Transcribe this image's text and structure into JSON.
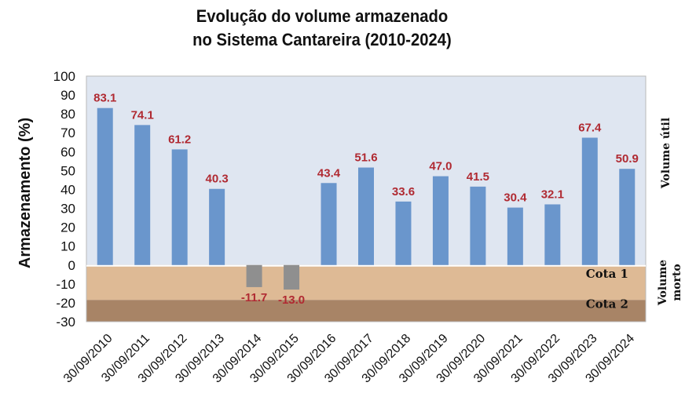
{
  "chart_data": {
    "type": "bar",
    "title_lines": [
      "Evolução do volume armazenado",
      "no Sistema Cantareira (2010-2024)"
    ],
    "ylabel": "Armazenamento (%)",
    "ylim": [
      -30,
      100
    ],
    "yticks": [
      100,
      90,
      80,
      70,
      60,
      50,
      40,
      30,
      20,
      10,
      0,
      -10,
      -20,
      -30
    ],
    "categories": [
      "30/09/2010",
      "30/09/2011",
      "30/09/2012",
      "30/09/2013",
      "30/09/2014",
      "30/09/2015",
      "30/09/2016",
      "30/09/2017",
      "30/09/2018",
      "30/09/2019",
      "30/09/2020",
      "30/09/2021",
      "30/09/2022",
      "30/09/2023",
      "30/09/2024"
    ],
    "values": [
      83.1,
      74.1,
      61.2,
      40.3,
      -11.7,
      -13.0,
      43.4,
      51.6,
      33.6,
      47.0,
      41.5,
      30.4,
      32.1,
      67.4,
      50.9
    ],
    "data_labels": [
      "83.1",
      "74.1",
      "61.2",
      "40.3",
      "-11.7",
      "-13.0",
      "43.4",
      "51.6",
      "33.6",
      "47.0",
      "41.5",
      "30.4",
      "32.1",
      "67.4",
      "50.9"
    ],
    "zones": [
      {
        "name": "Volume útil",
        "from": 0,
        "to": 100,
        "color": "#dfe6f1"
      },
      {
        "name": "Cota 1",
        "from": -18.5,
        "to": 0,
        "color": "#deba95"
      },
      {
        "name": "Cota 2",
        "from": -30,
        "to": -18.5,
        "color": "#a88466"
      }
    ],
    "side_labels": {
      "volume_util": "Volume útil",
      "volume_morto": [
        "Volume",
        "morto"
      ]
    },
    "colors": {
      "bar": "#6a96cc",
      "bar_negative": "#8f8f8f",
      "data_label": "#b02a32"
    },
    "grid": false,
    "legend": "none"
  }
}
